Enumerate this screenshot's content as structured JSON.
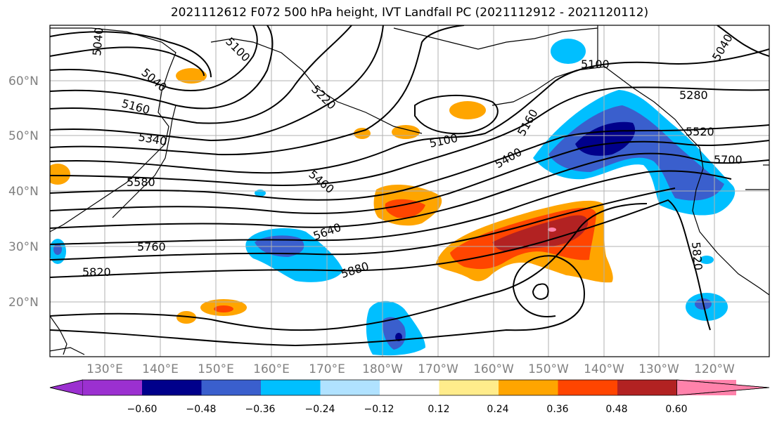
{
  "title": "2021112612 F072 500 hPa height, IVT Landfall PC (2021112912 - 2021120112)",
  "lat_labels": [
    "60°N",
    "50°N",
    "40°N",
    "30°N",
    "20°N"
  ],
  "lon_labels": [
    "130°E",
    "140°E",
    "150°E",
    "160°E",
    "170°E",
    "180°W",
    "170°W",
    "160°W",
    "150°W",
    "140°W",
    "130°W",
    "120°W"
  ],
  "contour_labels": [
    "5040",
    "5100",
    "5040",
    "5160",
    "5340",
    "5220",
    "5100",
    "5160",
    "5100",
    "5280",
    "5520",
    "5400",
    "5460",
    "5580",
    "5640",
    "5700",
    "5760",
    "5820",
    "5880",
    "5820",
    "5040"
  ],
  "colorbar": {
    "ticks": [
      "−0.60",
      "−0.48",
      "−0.36",
      "−0.24",
      "−0.12",
      "0.12",
      "0.24",
      "0.36",
      "0.48",
      "0.60"
    ],
    "colors": [
      "#9b30d0",
      "#00008b",
      "#3a5fcd",
      "#00bfff",
      "#b0e2ff",
      "#ffffff",
      "#ffec8b",
      "#ffa500",
      "#ff4500",
      "#b22222",
      "#ff82ab"
    ]
  }
}
